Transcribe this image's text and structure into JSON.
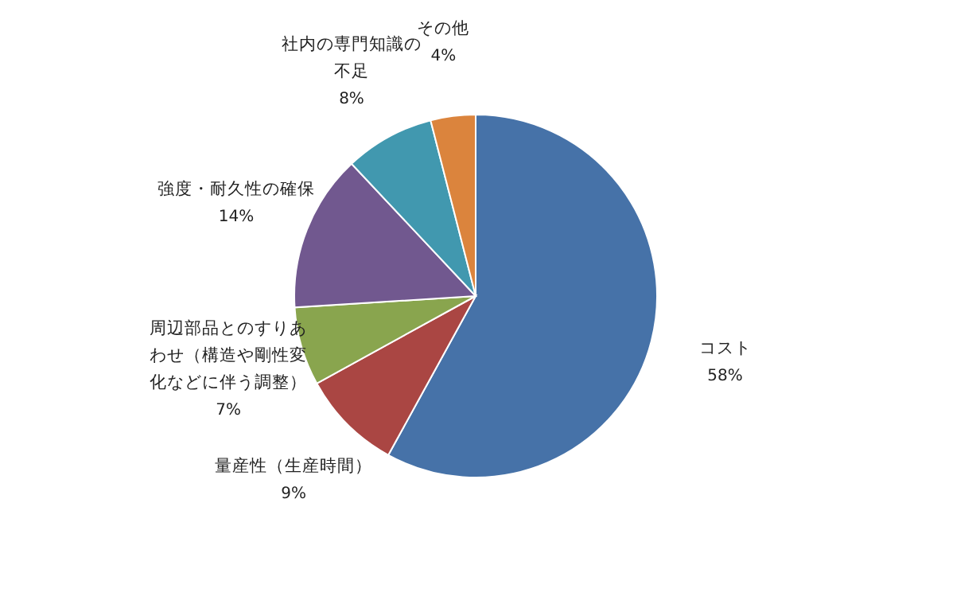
{
  "chart_data": {
    "type": "pie",
    "categories": [
      "コスト",
      "量産性（生産時間）",
      "周辺部品とのすりあわせ（構造や剛性変化などに伴う調整）",
      "強度・耐久性の確保",
      "社内の専門知識の不足",
      "その他"
    ],
    "values": [
      58,
      9,
      7,
      14,
      8,
      4
    ],
    "colors": [
      "#4672a8",
      "#aa4643",
      "#89a54e",
      "#71588f",
      "#4198af",
      "#db843d"
    ],
    "value_labels": [
      "58%",
      "9%",
      "7%",
      "14%",
      "8%",
      "4%"
    ]
  }
}
